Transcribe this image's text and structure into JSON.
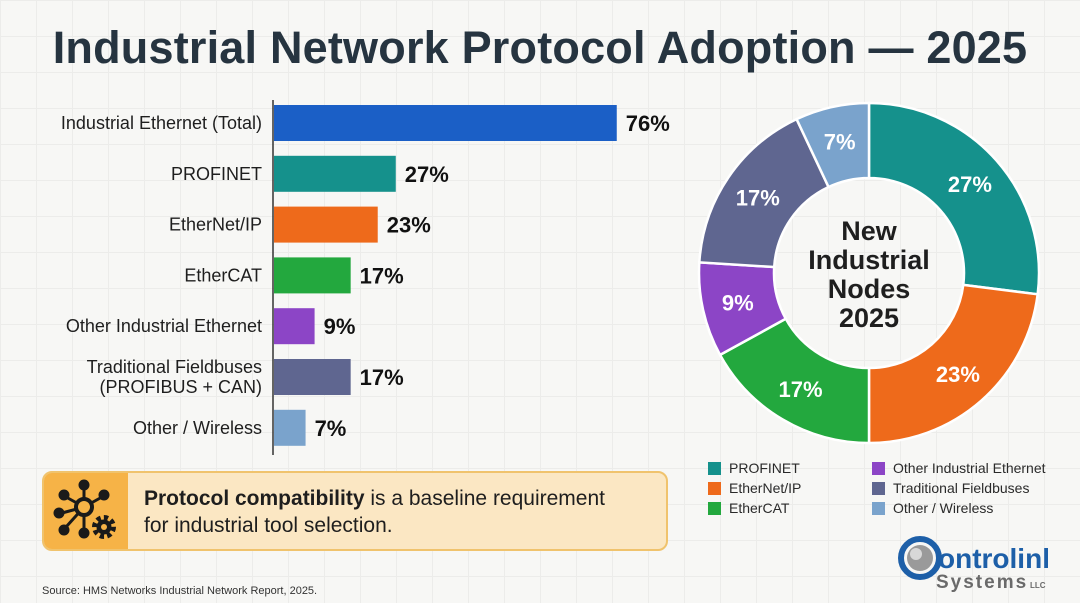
{
  "chart_data": [
    {
      "type": "bar",
      "orientation": "horizontal",
      "title": "Industrial Network Protocol Adoption — 2025",
      "categories": [
        "Industrial Ethernet (Total)",
        "PROFINET",
        "EtherNet/IP",
        "EtherCAT",
        "Other Industrial Ethernet",
        "Traditional Fieldbuses\n(PROFIBUS + CAN)",
        "Other / Wireless"
      ],
      "values": [
        76,
        27,
        23,
        17,
        9,
        17,
        7
      ],
      "data_labels": [
        "76%",
        "27%",
        "23%",
        "17%",
        "9%",
        "17%",
        "7%"
      ],
      "colors": [
        "#1b5fc6",
        "#15918c",
        "#ee6a1b",
        "#23a83e",
        "#8c45c6",
        "#5f6690",
        "#7aa3cc"
      ],
      "unit": "%",
      "xlim": [
        0,
        100
      ],
      "grid": false
    },
    {
      "type": "pie",
      "variant": "donut",
      "center_label": "New\nIndustrial\nNodes\n2025",
      "labels": [
        "PROFINET",
        "EtherNet/IP",
        "EtherCAT",
        "Other Industrial Ethernet",
        "Traditional Fieldbuses",
        "Other / Wireless"
      ],
      "values": [
        27,
        23,
        17,
        9,
        17,
        7
      ],
      "data_labels": [
        "27%",
        "23%",
        "17%",
        "9%",
        "17%",
        "7%"
      ],
      "colors": [
        "#15918c",
        "#ee6a1b",
        "#23a83e",
        "#8c45c6",
        "#5f6690",
        "#7aa3cc"
      ],
      "legend_placement": "bottom"
    }
  ],
  "callout": {
    "bold": "Protocol compatibility",
    "rest": " is a baseline requirement",
    "line2": "for industrial tool selection.",
    "icon": "network-gear-icon",
    "accent": "#f6b347"
  },
  "source": "Source: HMS Networks Industrial Network Report, 2025.",
  "logo": {
    "text": "Controlink Systems LLC"
  }
}
